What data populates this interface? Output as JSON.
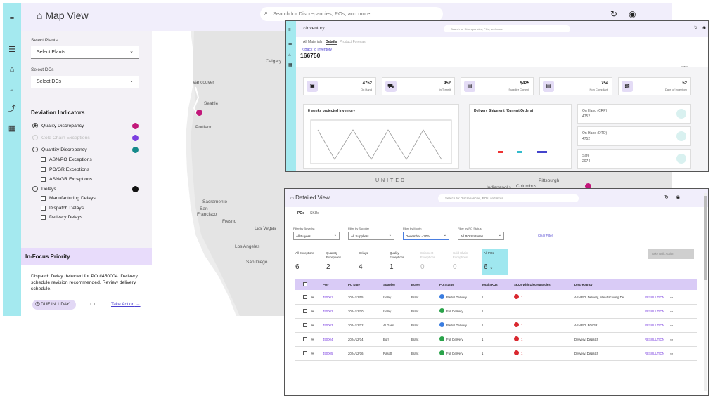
{
  "map_view": {
    "title": "Map View",
    "search_placeholder": "Search for Discrepancies, POs, and more",
    "select_plants_label": "Select Plants",
    "select_plants_value": "Select Plants",
    "select_dcs_label": "Select DCs",
    "select_dcs_value": "Select DCs",
    "deviation_heading": "Deviation Indicators",
    "options": [
      {
        "label": "Quality Discrepancy"
      },
      {
        "label": "Cold Chain Exceptions"
      },
      {
        "label": "Quantity Discrepancy"
      },
      {
        "label": "ASN/PO Exceptions"
      },
      {
        "label": "PO/GR Exceptions"
      },
      {
        "label": "ASN/GR Exceptions"
      },
      {
        "label": "Delays"
      },
      {
        "label": "Manufacturing Delays"
      },
      {
        "label": "Dispatch Delays"
      },
      {
        "label": "Delivery Delays"
      }
    ],
    "colors": {
      "pink": "#c2187a",
      "purple": "#7b3fe0",
      "teal": "#158a8a",
      "black": "#111111"
    },
    "in_focus_title": "In-Focus Priority",
    "in_focus_desc": "Dispatch Delay detected for PO #450004. Delivery schedule revision recommended. Review delivery schedule.",
    "due_label": "DUE IN 1 DAY",
    "take_action": "Take Action",
    "map_labels": [
      "Calgary",
      "Vancouver",
      "Seattle",
      "Portland",
      "Sacramento",
      "San",
      "Francisco",
      "Fresno",
      "Las Vegas",
      "Los Angeles",
      "San Diego",
      "UNITED",
      "Columbus",
      "Pittsburgh",
      "Indianapolis"
    ]
  },
  "inventory": {
    "title": "Inventory",
    "search_placeholder": "Search for Discrepancies, POs, and more",
    "tabs": [
      "All Materials",
      "Details",
      "Product Forecast"
    ],
    "back": "< Back to Inventory",
    "material_id": "166750",
    "cards": [
      {
        "value": "4752",
        "label": "On Hand"
      },
      {
        "value": "952",
        "label": "In Transit"
      },
      {
        "value": "$425",
        "label": "Supplier Commit"
      },
      {
        "value": "754",
        "label": "Non Compliant"
      },
      {
        "value": "52",
        "label": "Days of Inventory"
      }
    ],
    "chart1_title": "8 weeks projected inventory",
    "chart2_title": "Delivery Shipment (Current Orders)",
    "side_cards": [
      {
        "label": "On Hand (CRP)",
        "value": "4752"
      },
      {
        "label": "On Hand (DTO)",
        "value": "4752"
      },
      {
        "label": "Safe",
        "value": "2074"
      }
    ]
  },
  "detailed": {
    "title": "Detailed View",
    "search_placeholder": "Search for Discrepancies, POs, and more",
    "tabs": [
      "POs",
      "SKUs"
    ],
    "filters": [
      {
        "label": "Filter by Buyer(s)",
        "value": "All Buyers"
      },
      {
        "label": "Filter by Supplier",
        "value": "All Suppliers"
      },
      {
        "label": "Filter by Month",
        "value": "December - 2024"
      },
      {
        "label": "Filter by PO Status",
        "value": "All PO Statuses"
      }
    ],
    "clear_filter": "Clear Filter",
    "tiles": [
      {
        "label": "All Exceptions",
        "value": "6"
      },
      {
        "label": "Quantity Exceptions",
        "value": "2"
      },
      {
        "label": "Delays",
        "value": "4"
      },
      {
        "label": "Quality Exceptions",
        "value": "1"
      },
      {
        "label": "Shipment Exceptions",
        "value": "0"
      },
      {
        "label": "Cold Chain Exceptions",
        "value": "0"
      },
      {
        "label": "All POs",
        "value": "6"
      }
    ],
    "action_button": "Take Bulk Action",
    "columns": [
      "PO#",
      "PO Date",
      "Supplier",
      "Buyer",
      "PO Status",
      "Total SKUs",
      "SKUs with Discrepancies",
      "Discrepancy"
    ],
    "rows": [
      {
        "po": "450001",
        "date": "2024/12/05",
        "supplier": "Ixelay",
        "buyer": "Brant",
        "status": "Partial Delivery",
        "skus": "1",
        "disc_skus": "1",
        "discrepancy": "ASN/PO, Delivery, Manufacturing De...",
        "res": "RESOLUTION"
      },
      {
        "po": "450002",
        "date": "2024/12/10",
        "supplier": "Ixelay",
        "buyer": "Brant",
        "status": "Full Delivery",
        "skus": "1",
        "disc_skus": "",
        "discrepancy": "",
        "res": "RESOLUTION"
      },
      {
        "po": "450003",
        "date": "2024/12/12",
        "supplier": "Al Gass",
        "buyer": "Brant",
        "status": "Partial Delivery",
        "skus": "1",
        "disc_skus": "1",
        "discrepancy": "ASN/PO, PO/GR",
        "res": "RESOLUTION"
      },
      {
        "po": "450004",
        "date": "2024/12/14",
        "supplier": "Borr",
        "buyer": "Brant",
        "status": "Full Delivery",
        "skus": "1",
        "disc_skus": "1",
        "discrepancy": "Delivery, Dispatch",
        "res": "RESOLUTION"
      },
      {
        "po": "450005",
        "date": "2024/12/16",
        "supplier": "Rasott",
        "buyer": "Brant",
        "status": "Full Delivery",
        "skus": "1",
        "disc_skus": "1",
        "discrepancy": "Delivery, Dispatch",
        "res": "RESOLUTION"
      }
    ]
  }
}
